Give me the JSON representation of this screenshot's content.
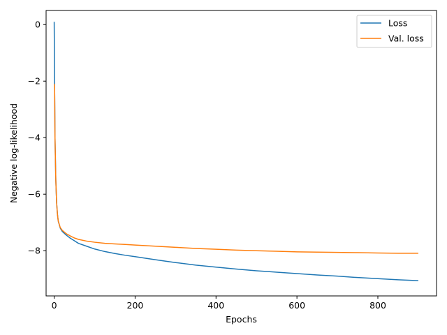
{
  "chart_data": {
    "type": "line",
    "title": "",
    "xlabel": "Epochs",
    "ylabel": "Negative log-likelihood",
    "xlim": [
      -20,
      945
    ],
    "ylim": [
      -9.6,
      0.5
    ],
    "xticks": [
      0,
      200,
      400,
      600,
      800
    ],
    "xtick_labels": [
      "0",
      "200",
      "400",
      "600",
      "800"
    ],
    "yticks": [
      0,
      -2,
      -4,
      -6,
      -8
    ],
    "ytick_labels": [
      "0",
      "−2",
      "−4",
      "−6",
      "−8"
    ],
    "grid": false,
    "legend_position": "top-right",
    "series": [
      {
        "name": "Loss",
        "color": "#1f77b4",
        "x": [
          0,
          1,
          2,
          4,
          6,
          8,
          10,
          15,
          20,
          30,
          40,
          50,
          60,
          80,
          100,
          125,
          150,
          175,
          200,
          250,
          300,
          350,
          400,
          450,
          500,
          550,
          600,
          650,
          700,
          750,
          800,
          850,
          900
        ],
        "y": [
          0.1,
          -2.1,
          -4.0,
          -5.5,
          -6.3,
          -6.7,
          -6.95,
          -7.2,
          -7.32,
          -7.45,
          -7.56,
          -7.65,
          -7.74,
          -7.84,
          -7.94,
          -8.03,
          -8.1,
          -8.16,
          -8.21,
          -8.32,
          -8.42,
          -8.51,
          -8.58,
          -8.65,
          -8.71,
          -8.76,
          -8.81,
          -8.86,
          -8.9,
          -8.95,
          -8.99,
          -9.03,
          -9.06
        ]
      },
      {
        "name": "Val. loss",
        "color": "#ff7f0e",
        "x": [
          1,
          2,
          4,
          6,
          8,
          10,
          15,
          20,
          30,
          40,
          50,
          60,
          80,
          100,
          125,
          150,
          175,
          200,
          250,
          300,
          350,
          400,
          450,
          500,
          550,
          600,
          650,
          700,
          750,
          800,
          850,
          900
        ],
        "y": [
          -2.1,
          -4.0,
          -5.5,
          -6.3,
          -6.7,
          -6.95,
          -7.18,
          -7.28,
          -7.4,
          -7.48,
          -7.55,
          -7.6,
          -7.66,
          -7.7,
          -7.74,
          -7.76,
          -7.78,
          -7.8,
          -7.84,
          -7.88,
          -7.92,
          -7.95,
          -7.98,
          -8.0,
          -8.02,
          -8.04,
          -8.05,
          -8.06,
          -8.07,
          -8.08,
          -8.09,
          -8.09
        ]
      }
    ]
  }
}
